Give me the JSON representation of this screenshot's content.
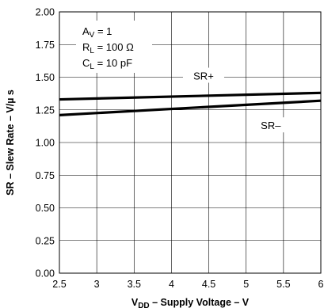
{
  "chart_data": {
    "type": "line",
    "xlabel": {
      "main": "V",
      "sub": "DD",
      "rest": " – Supply Voltage – V"
    },
    "ylabel": "SR – Slew Rate – V/µ s",
    "xlim": [
      2.5,
      6
    ],
    "ylim": [
      0,
      2
    ],
    "x_ticks": [
      "2.5",
      "3",
      "3.5",
      "4",
      "4.5",
      "5",
      "5.5",
      "6"
    ],
    "y_ticks": [
      "0.00",
      "0.25",
      "0.50",
      "0.75",
      "1.00",
      "1.25",
      "1.50",
      "1.75",
      "2.00"
    ],
    "grid": true,
    "conditions": [
      {
        "main": "A",
        "sub": "V",
        "rest": " = 1"
      },
      {
        "main": "R",
        "sub": "L",
        "rest": " = 100 Ω"
      },
      {
        "main": "C",
        "sub": "L",
        "rest": " = 10 pF"
      }
    ],
    "series": [
      {
        "name": "SR+",
        "x": [
          2.5,
          6
        ],
        "y": [
          1.33,
          1.38
        ],
        "label_at": [
          4.43,
          1.5
        ]
      },
      {
        "name": "SR–",
        "x": [
          2.5,
          6
        ],
        "y": [
          1.21,
          1.32
        ],
        "label_at": [
          5.33,
          1.12
        ]
      }
    ],
    "line_color": "#000000",
    "grid_color": "#000000"
  }
}
